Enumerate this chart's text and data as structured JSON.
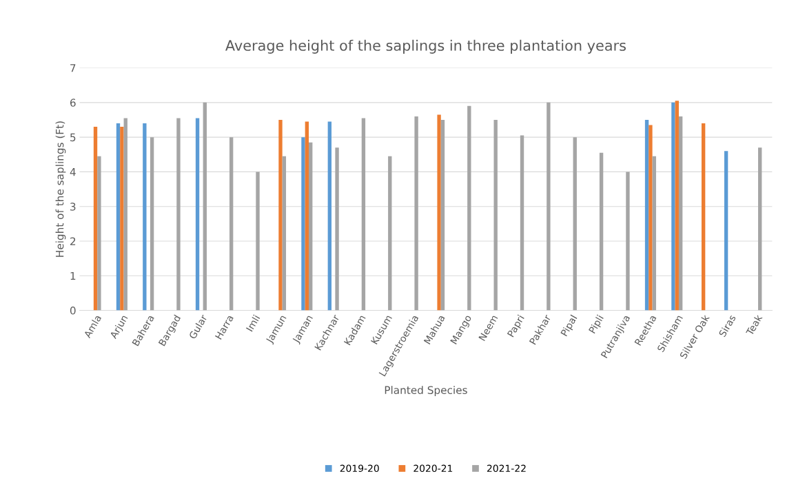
{
  "chart_data": {
    "type": "bar",
    "title": "Average height of the saplings in three plantation years",
    "xlabel": "Planted Species",
    "ylabel": "Height of the saplings (Ft)",
    "categories": [
      "Amla",
      "Arjun",
      "Bahera",
      "Bargad",
      "Gular",
      "Harra",
      "Imli",
      "Jamun",
      "Jaman",
      "Kachnar",
      "Kadam",
      "Kusum",
      "Lagerstroemia",
      "Mahua",
      "Mango",
      "Neem",
      "Papri",
      "Pakhar",
      "Pipal",
      "Pipli",
      "Putranjiva",
      "Reetha",
      "Shisham",
      "Silver Oak",
      "Siras",
      "Teak"
    ],
    "series": [
      {
        "name": "2019-20",
        "color": "#5b9bd5",
        "values": [
          null,
          5.4,
          5.4,
          null,
          5.55,
          null,
          null,
          null,
          5.0,
          5.45,
          null,
          null,
          null,
          null,
          null,
          null,
          null,
          null,
          null,
          null,
          null,
          5.5,
          6.0,
          null,
          4.6,
          null
        ]
      },
      {
        "name": "2020-21",
        "color": "#ed7d31",
        "values": [
          5.3,
          5.3,
          null,
          null,
          null,
          null,
          null,
          5.5,
          5.45,
          null,
          null,
          null,
          null,
          5.65,
          null,
          null,
          null,
          null,
          null,
          null,
          null,
          5.35,
          6.05,
          5.4,
          null,
          null
        ]
      },
      {
        "name": "2021-22",
        "color": "#a5a5a5",
        "values": [
          4.45,
          5.55,
          5.0,
          5.55,
          6.0,
          5.0,
          4.0,
          4.45,
          4.85,
          4.7,
          5.55,
          4.45,
          5.6,
          5.5,
          5.9,
          5.5,
          5.05,
          6.0,
          5.0,
          4.55,
          4.0,
          4.45,
          5.6,
          null,
          null,
          4.7
        ]
      }
    ],
    "ylim": [
      0,
      7
    ],
    "yticks": [
      0,
      1,
      2,
      3,
      4,
      5,
      6,
      7
    ],
    "grid": "y",
    "legend": "bottom"
  }
}
